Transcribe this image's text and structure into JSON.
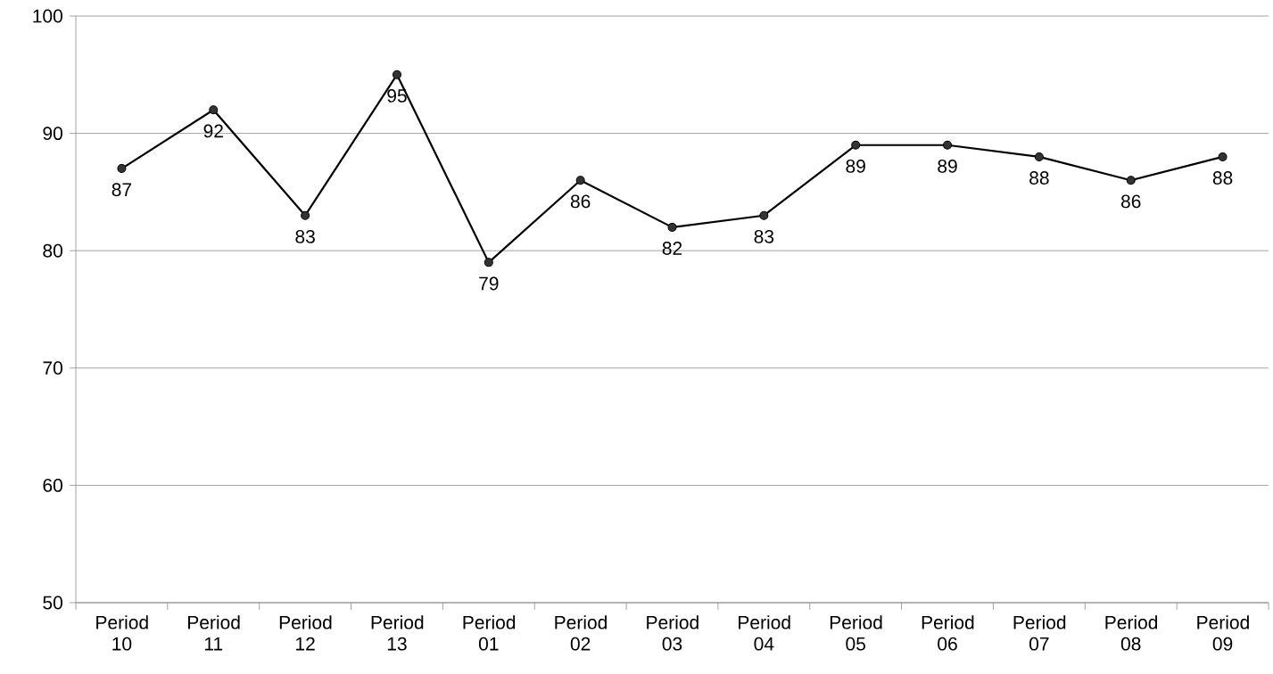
{
  "chart_data": {
    "type": "line",
    "categories": [
      "Period 10",
      "Period 11",
      "Period 12",
      "Period 13",
      "Period 01",
      "Period 02",
      "Period 03",
      "Period 04",
      "Period 05",
      "Period 06",
      "Period 07",
      "Period 08",
      "Period 09"
    ],
    "values": [
      87,
      92,
      83,
      95,
      79,
      86,
      82,
      83,
      89,
      89,
      88,
      86,
      88
    ],
    "color": "#000000",
    "ylim": [
      50,
      100
    ],
    "yticks": [
      50,
      60,
      70,
      80,
      90,
      100
    ],
    "grid": "y",
    "marker": "circle",
    "line_style": "solid",
    "data_labels": true
  }
}
